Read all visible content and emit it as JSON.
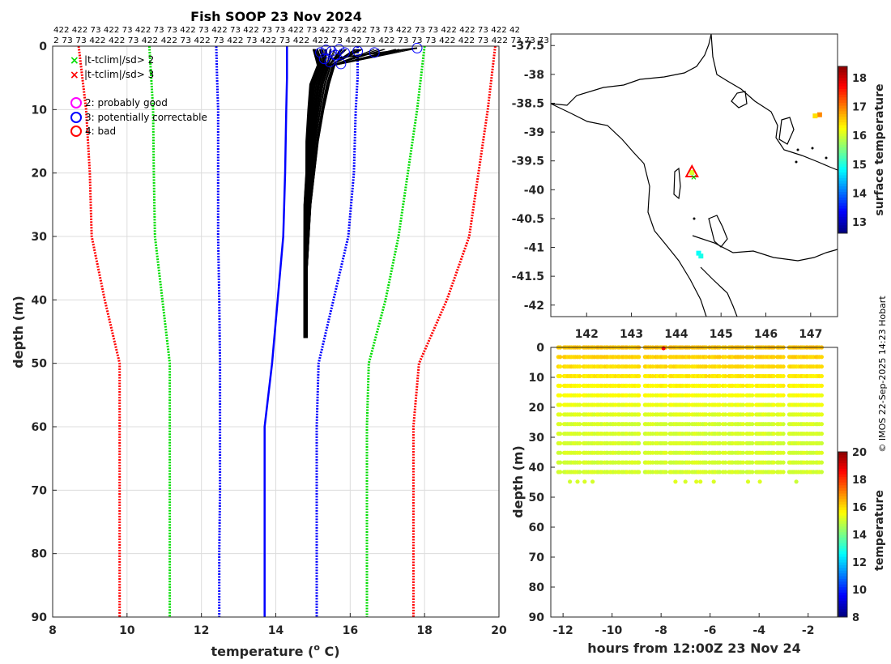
{
  "credit": "© IMOS 22-Sep-2025 14:23 Hobart",
  "chart_data": [
    {
      "type": "line",
      "title": "Fish SOOP 23 Nov 2024",
      "xlabel": "temperature (o C)",
      "xlabel_main": "temperature (",
      "xlabel_sup": "o",
      "xlabel_tail": " C)",
      "ylabel": "depth (m)",
      "xlim": [
        8,
        20
      ],
      "ylim": [
        0,
        90
      ],
      "y_reversed": true,
      "xticks": [
        "8",
        "10",
        "12",
        "14",
        "16",
        "18",
        "20"
      ],
      "yticks": [
        "0",
        "10",
        "20",
        "30",
        "40",
        "50",
        "60",
        "70",
        "80",
        "90"
      ],
      "grid": true,
      "top_counts_row1": "422 422 73 422 73 422 73 73 422 73 422 73 422 73 73 422 73 422 73 422 73 73 422 73 73 422 422 73 422 42",
      "top_counts_row2": "2 73 73 422 422 73 422 422 73 422 73 422 73 422 73 422 422 73 422 73 422 73 73 73 422 422 73 422 73 73 73",
      "legend": {
        "markers": [
          {
            "label": "|t-tclim|/sd> 2",
            "color": "#00dd00",
            "symbol": "x"
          },
          {
            "label": "|t-tclim|/sd> 3",
            "color": "#ff0000",
            "symbol": "x"
          }
        ],
        "flags": [
          {
            "label": "2: probably good",
            "color": "#ff00ff"
          },
          {
            "label": "3: potentially correctable",
            "color": "#0000ff"
          },
          {
            "label": "4: bad",
            "color": "#ff0000"
          }
        ]
      },
      "climatology": {
        "depth": [
          0,
          5,
          10,
          20,
          30,
          40,
          50,
          60,
          70,
          80,
          90
        ],
        "series": [
          {
            "name": "mean",
            "color": "#0000ff",
            "style": "solid",
            "values": [
              14.3,
              14.3,
              14.28,
              14.25,
              14.2,
              14.05,
              13.9,
              13.7,
              13.7,
              13.7,
              13.7
            ]
          },
          {
            "name": "mean - 1sd",
            "color": "#0000ff",
            "style": "dotted",
            "values": [
              12.4,
              12.42,
              12.45,
              12.45,
              12.45,
              12.48,
              12.5,
              12.5,
              12.5,
              12.48,
              12.48
            ]
          },
          {
            "name": "mean + 1sd",
            "color": "#0000ff",
            "style": "dotted",
            "values": [
              16.2,
              16.2,
              16.15,
              16.1,
              15.95,
              15.55,
              15.15,
              15.1,
              15.1,
              15.1,
              15.1
            ]
          },
          {
            "name": "mean - 2sd",
            "color": "#00dd00",
            "style": "dotted",
            "values": [
              10.6,
              10.65,
              10.7,
              10.72,
              10.75,
              10.95,
              11.15,
              11.15,
              11.15,
              11.15,
              11.15
            ]
          },
          {
            "name": "mean + 2sd",
            "color": "#00dd00",
            "style": "dotted",
            "values": [
              18.0,
              17.9,
              17.8,
              17.55,
              17.3,
              16.95,
              16.5,
              16.45,
              16.45,
              16.45,
              16.45
            ]
          },
          {
            "name": "mean - 3sd",
            "color": "#ff0000",
            "style": "dotted",
            "values": [
              8.7,
              8.8,
              8.9,
              9.0,
              9.05,
              9.4,
              9.8,
              9.8,
              9.8,
              9.8,
              9.8
            ]
          },
          {
            "name": "mean + 3sd",
            "color": "#ff0000",
            "style": "dotted",
            "values": [
              19.9,
              19.8,
              19.7,
              19.45,
              19.2,
              18.6,
              17.85,
              17.7,
              17.7,
              17.7,
              17.7
            ]
          }
        ]
      },
      "profiles": {
        "color": "#000000",
        "depth": [
          0.5,
          3,
          6,
          10,
          15,
          20,
          25,
          30,
          35,
          40,
          46
        ],
        "envelope_min": [
          15.0,
          15.1,
          14.9,
          14.85,
          14.8,
          14.8,
          14.75,
          14.75,
          14.75,
          14.75,
          14.75
        ],
        "envelope_max": [
          17.8,
          15.6,
          15.45,
          15.3,
          15.15,
          15.05,
          14.95,
          14.9,
          14.85,
          14.85,
          14.85
        ],
        "flagged_surface_points": [
          {
            "temp": 15.2,
            "depth": 1.0
          },
          {
            "temp": 15.35,
            "depth": 0.6
          },
          {
            "temp": 15.5,
            "depth": 0.8
          },
          {
            "temp": 15.6,
            "depth": 1.4
          },
          {
            "temp": 15.7,
            "depth": 0.5
          },
          {
            "temp": 15.85,
            "depth": 1.0
          },
          {
            "temp": 16.2,
            "depth": 0.8
          },
          {
            "temp": 16.65,
            "depth": 1.0
          },
          {
            "temp": 17.8,
            "depth": 0.3
          },
          {
            "temp": 15.3,
            "depth": 2.0
          },
          {
            "temp": 15.45,
            "depth": 2.5
          },
          {
            "temp": 15.75,
            "depth": 2.8
          }
        ]
      }
    },
    {
      "type": "map",
      "colorbar_label": "surface temperature",
      "xlim": [
        141.2,
        147.6
      ],
      "ylim": [
        -42.2,
        -37.3
      ],
      "xticks": [
        "142",
        "143",
        "144",
        "145",
        "146",
        "147"
      ],
      "yticks": [
        "-37.5",
        "-38",
        "-38.5",
        "-39",
        "-39.5",
        "-40",
        "-40.5",
        "-41",
        "-41.5",
        "-42"
      ],
      "colorbar_ticks": [
        "13",
        "14",
        "15",
        "16",
        "17",
        "18"
      ],
      "colorbar_range": [
        12.6,
        18.4
      ],
      "coastline_label": "coastline",
      "points": [
        {
          "lon": 144.35,
          "lat": -39.7,
          "temp": 16.0,
          "marker": "triangle"
        },
        {
          "lon": 144.5,
          "lat": -41.1,
          "temp": 14.8,
          "marker": "square"
        },
        {
          "lon": 144.55,
          "lat": -41.15,
          "temp": 14.9,
          "marker": "square"
        },
        {
          "lon": 147.2,
          "lat": -38.7,
          "temp": 16.9,
          "marker": "square"
        },
        {
          "lon": 147.1,
          "lat": -38.72,
          "temp": 16.4,
          "marker": "square"
        }
      ]
    },
    {
      "type": "scatter",
      "xlabel": "hours from 12:00Z 23 Nov 24",
      "ylabel": "depth (m)",
      "colorbar_label": "temperature",
      "xlim": [
        -12.5,
        -0.8
      ],
      "ylim": [
        0,
        90
      ],
      "y_reversed": true,
      "xticks": [
        "-12",
        "-10",
        "-8",
        "-6",
        "-4",
        "-2"
      ],
      "yticks": [
        "0",
        "10",
        "20",
        "30",
        "40",
        "50",
        "60",
        "70",
        "80",
        "90"
      ],
      "colorbar_ticks": [
        "8",
        "10",
        "12",
        "14",
        "16",
        "18",
        "20"
      ],
      "colorbar_range": [
        8,
        20
      ],
      "casts_hours_range": [
        -12.2,
        -1.3
      ],
      "cast_depth_max": 45,
      "temp_surface": 16.2,
      "temp_deep": 15.0,
      "outlier": {
        "hour": -7.9,
        "depth": 0.3,
        "temp": 18.5
      }
    }
  ]
}
